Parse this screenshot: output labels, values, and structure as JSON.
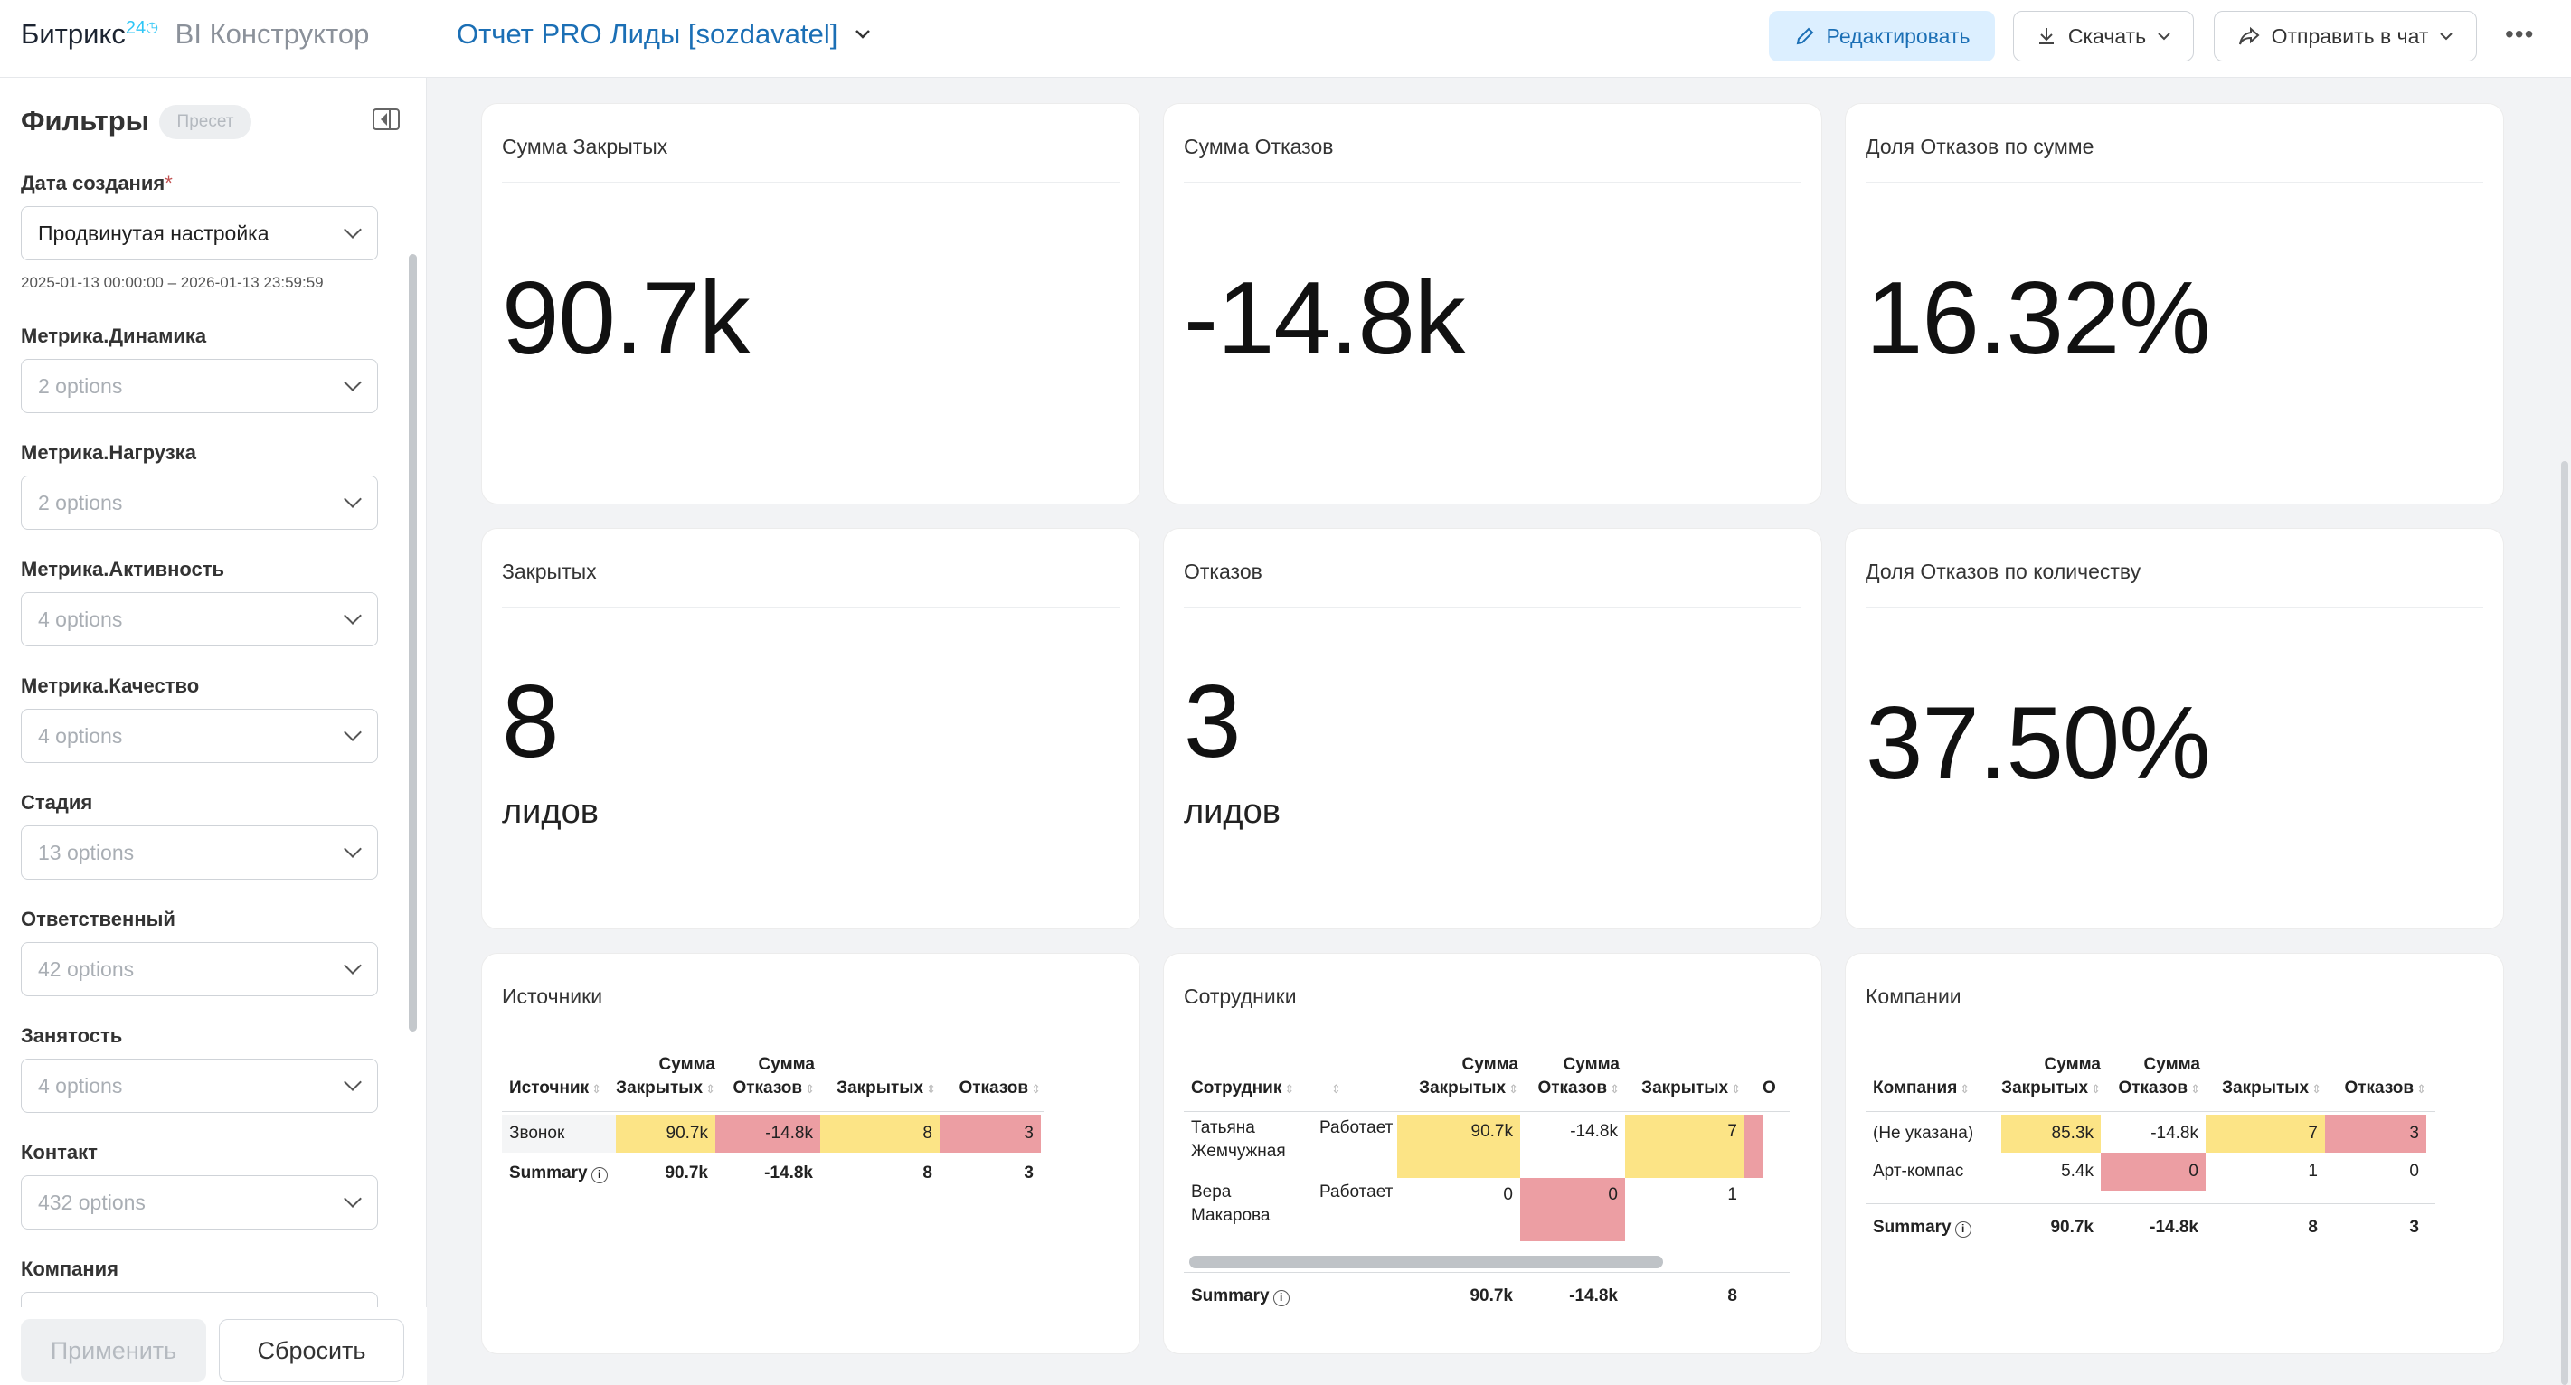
{
  "header": {
    "brand_name": "Битрикс",
    "brand_num": "24",
    "brand_sub": "BI Конструктор",
    "dashboard_title": "Отчет PRO Лиды [sozdavatel]",
    "edit_label": "Редактировать",
    "download_label": "Скачать",
    "send_label": "Отправить в чат",
    "more_label": "•••"
  },
  "sidebar": {
    "title": "Фильтры",
    "preset_label": "Пресет",
    "filters": [
      {
        "label": "Дата создания",
        "value": "Продвинутая настройка"
      },
      {
        "label": "Метрика.Динамика",
        "value": "2 options"
      },
      {
        "label": "Метрика.Нагрузка",
        "value": "2 options"
      },
      {
        "label": "Метрика.Активность",
        "value": "4 options"
      },
      {
        "label": "Метрика.Качество",
        "value": "4 options"
      },
      {
        "label": "Стадия",
        "value": "13 options"
      },
      {
        "label": "Ответственный",
        "value": "42 options"
      },
      {
        "label": "Занятость",
        "value": "4 options"
      },
      {
        "label": "Контакт",
        "value": "432 options"
      },
      {
        "label": "Компания",
        "value": ""
      }
    ],
    "required_mark": "*",
    "date_range": "2025-01-13 00:00:00 – 2026-01-13 23:59:59",
    "apply_label": "Применить",
    "reset_label": "Сбросить"
  },
  "kpis": [
    {
      "title": "Сумма Закрытых",
      "value": "90.7k",
      "unit": ""
    },
    {
      "title": "Сумма Отказов",
      "value": "-14.8k",
      "unit": ""
    },
    {
      "title": "Доля Отказов по сумме",
      "value": "16.32%",
      "unit": ""
    },
    {
      "title": "Закрытых",
      "value": "8",
      "unit": "лидов"
    },
    {
      "title": "Отказов",
      "value": "3",
      "unit": "лидов"
    },
    {
      "title": "Доля Отказов по количеству",
      "value": "37.50%",
      "unit": ""
    }
  ],
  "tables": {
    "sources": {
      "title": "Источники",
      "headers": [
        "Источник",
        "Сумма Закрытых",
        "Сумма Отказов",
        "Закрытых",
        "Отказов"
      ],
      "rows": [
        [
          "Звонок",
          "90.7k",
          "-14.8k",
          "8",
          "3"
        ]
      ],
      "summary": [
        "Summary",
        "90.7k",
        "-14.8k",
        "8",
        "3"
      ]
    },
    "employees": {
      "title": "Сотрудники",
      "headers": [
        "Сотрудник",
        "",
        "Сумма Закрытых",
        "Сумма Отказов",
        "Закрытых",
        "О"
      ],
      "rows": [
        [
          "Татьяна Жемчужная",
          "Работает",
          "90.7k",
          "-14.8k",
          "7",
          ""
        ],
        [
          "Вера Макарова",
          "Работает",
          "0",
          "0",
          "1",
          ""
        ]
      ],
      "summary": [
        "Summary",
        "",
        "90.7k",
        "-14.8k",
        "8",
        ""
      ]
    },
    "companies": {
      "title": "Компании",
      "headers": [
        "Компания",
        "Сумма Закрытых",
        "Сумма Отказов",
        "Закрытых",
        "Отказов"
      ],
      "rows": [
        [
          "(Не указана)",
          "85.3k",
          "-14.8k",
          "7",
          "3"
        ],
        [
          "Арт-компас",
          "5.4k",
          "0",
          "1",
          "0"
        ]
      ],
      "summary": [
        "Summary",
        "90.7k",
        "-14.8k",
        "8",
        "3"
      ]
    }
  },
  "colors": {
    "highlight_yellow": "#fce486",
    "highlight_red": "#ec9ea3",
    "accent": "#1b6fb5"
  }
}
